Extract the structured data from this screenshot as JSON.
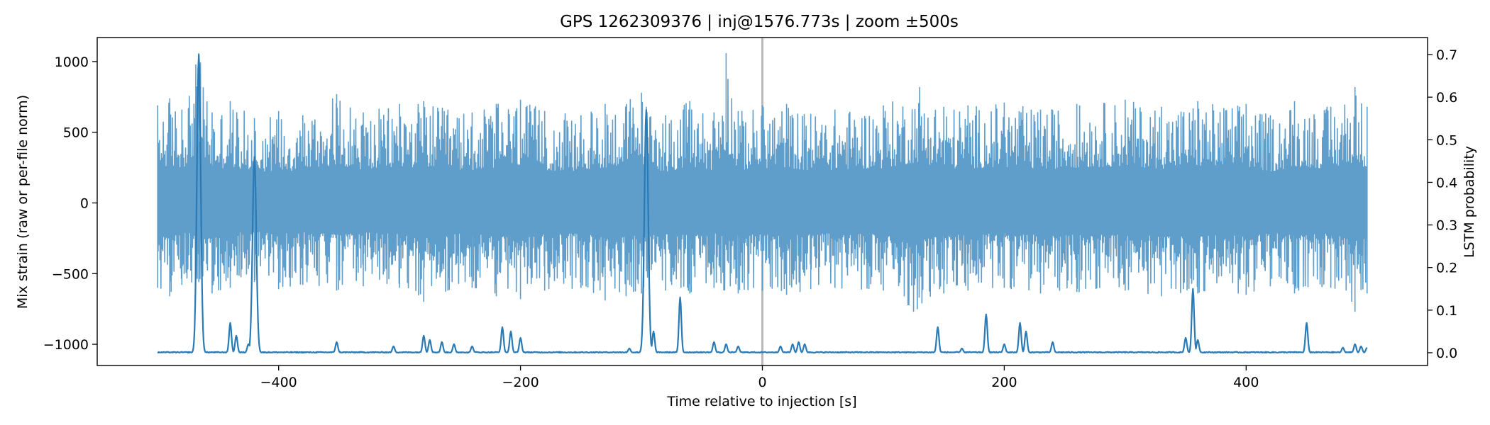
{
  "chart_data": {
    "type": "line",
    "title": "GPS 1262309376 | inj@1576.773s | zoom ±500s",
    "xlabel": "Time relative to injection [s]",
    "ylabel_left": "Mix strain (raw or per-file norm)",
    "ylabel_right": "LSTM probability",
    "xlim": [
      -550,
      550
    ],
    "ylim_left": [
      -1150,
      1170
    ],
    "ylim_right": [
      -0.03,
      0.74
    ],
    "x_ticks": [
      -400,
      -200,
      0,
      200,
      400
    ],
    "x_tick_labels": [
      "−400",
      "−200",
      "0",
      "200",
      "400"
    ],
    "y_left_ticks": [
      -1000,
      -500,
      0,
      500,
      1000
    ],
    "y_left_tick_labels": [
      "−1000",
      "−500",
      "0",
      "500",
      "1000"
    ],
    "y_right_ticks": [
      0.0,
      0.1,
      0.2,
      0.3,
      0.4,
      0.5,
      0.6,
      0.7
    ],
    "y_right_tick_labels": [
      "0.0",
      "0.1",
      "0.2",
      "0.3",
      "0.4",
      "0.5",
      "0.6",
      "0.7"
    ],
    "injection_marker_x": 0,
    "grid": false,
    "series": [
      {
        "axis": "left",
        "color": "#5f9ecb",
        "x_range": [
          -500,
          500
        ],
        "envelope_upper": [
          [
            -500,
            690
          ],
          [
            -490,
            740
          ],
          [
            -480,
            660
          ],
          [
            -466,
            1060
          ],
          [
            -455,
            640
          ],
          [
            -440,
            720
          ],
          [
            -420,
            600
          ],
          [
            -400,
            650
          ],
          [
            -380,
            620
          ],
          [
            -352,
            770
          ],
          [
            -330,
            640
          ],
          [
            -300,
            700
          ],
          [
            -280,
            720
          ],
          [
            -260,
            660
          ],
          [
            -240,
            640
          ],
          [
            -220,
            700
          ],
          [
            -200,
            730
          ],
          [
            -180,
            650
          ],
          [
            -150,
            620
          ],
          [
            -130,
            700
          ],
          [
            -100,
            780
          ],
          [
            -96,
            680
          ],
          [
            -80,
            620
          ],
          [
            -60,
            720
          ],
          [
            -40,
            640
          ],
          [
            -30,
            1060
          ],
          [
            -20,
            650
          ],
          [
            0,
            690
          ],
          [
            20,
            700
          ],
          [
            40,
            630
          ],
          [
            60,
            660
          ],
          [
            100,
            690
          ],
          [
            130,
            820
          ],
          [
            150,
            680
          ],
          [
            170,
            690
          ],
          [
            200,
            710
          ],
          [
            230,
            660
          ],
          [
            260,
            700
          ],
          [
            300,
            730
          ],
          [
            330,
            680
          ],
          [
            360,
            720
          ],
          [
            400,
            700
          ],
          [
            420,
            620
          ],
          [
            440,
            720
          ],
          [
            470,
            680
          ],
          [
            490,
            820
          ],
          [
            500,
            680
          ]
        ],
        "envelope_lower": [
          [
            -500,
            -600
          ],
          [
            -490,
            -660
          ],
          [
            -480,
            -580
          ],
          [
            -466,
            -560
          ],
          [
            -455,
            -640
          ],
          [
            -440,
            -600
          ],
          [
            -420,
            -560
          ],
          [
            -400,
            -610
          ],
          [
            -380,
            -580
          ],
          [
            -352,
            -620
          ],
          [
            -330,
            -590
          ],
          [
            -300,
            -600
          ],
          [
            -280,
            -700
          ],
          [
            -260,
            -620
          ],
          [
            -240,
            -600
          ],
          [
            -220,
            -660
          ],
          [
            -200,
            -680
          ],
          [
            -180,
            -620
          ],
          [
            -150,
            -600
          ],
          [
            -130,
            -690
          ],
          [
            -100,
            -640
          ],
          [
            -80,
            -620
          ],
          [
            -60,
            -640
          ],
          [
            -40,
            -600
          ],
          [
            -20,
            -640
          ],
          [
            0,
            -620
          ],
          [
            20,
            -650
          ],
          [
            40,
            -610
          ],
          [
            60,
            -600
          ],
          [
            100,
            -620
          ],
          [
            125,
            -770
          ],
          [
            150,
            -640
          ],
          [
            170,
            -620
          ],
          [
            200,
            -600
          ],
          [
            230,
            -640
          ],
          [
            260,
            -630
          ],
          [
            300,
            -620
          ],
          [
            330,
            -660
          ],
          [
            360,
            -640
          ],
          [
            400,
            -650
          ],
          [
            420,
            -590
          ],
          [
            440,
            -640
          ],
          [
            470,
            -600
          ],
          [
            490,
            -770
          ],
          [
            500,
            -640
          ]
        ]
      },
      {
        "axis": "right",
        "color": "#2a7ab5",
        "baseline": 0.0,
        "peaks": [
          [
            -466,
            0.7
          ],
          [
            -440,
            0.07
          ],
          [
            -435,
            0.04
          ],
          [
            -425,
            0.02
          ],
          [
            -420,
            0.46
          ],
          [
            -352,
            0.025
          ],
          [
            -305,
            0.015
          ],
          [
            -280,
            0.04
          ],
          [
            -275,
            0.03
          ],
          [
            -265,
            0.025
          ],
          [
            -255,
            0.02
          ],
          [
            -240,
            0.015
          ],
          [
            -215,
            0.06
          ],
          [
            -208,
            0.05
          ],
          [
            -200,
            0.035
          ],
          [
            -110,
            0.01
          ],
          [
            -96,
            0.57
          ],
          [
            -90,
            0.05
          ],
          [
            -68,
            0.13
          ],
          [
            -40,
            0.025
          ],
          [
            -30,
            0.02
          ],
          [
            -20,
            0.015
          ],
          [
            15,
            0.015
          ],
          [
            25,
            0.02
          ],
          [
            30,
            0.025
          ],
          [
            35,
            0.02
          ],
          [
            145,
            0.06
          ],
          [
            165,
            0.01
          ],
          [
            185,
            0.09
          ],
          [
            200,
            0.02
          ],
          [
            213,
            0.07
          ],
          [
            218,
            0.05
          ],
          [
            240,
            0.025
          ],
          [
            350,
            0.035
          ],
          [
            356,
            0.15
          ],
          [
            360,
            0.03
          ],
          [
            450,
            0.07
          ],
          [
            480,
            0.012
          ],
          [
            490,
            0.02
          ],
          [
            495,
            0.015
          ],
          [
            500,
            0.012
          ]
        ]
      }
    ]
  }
}
